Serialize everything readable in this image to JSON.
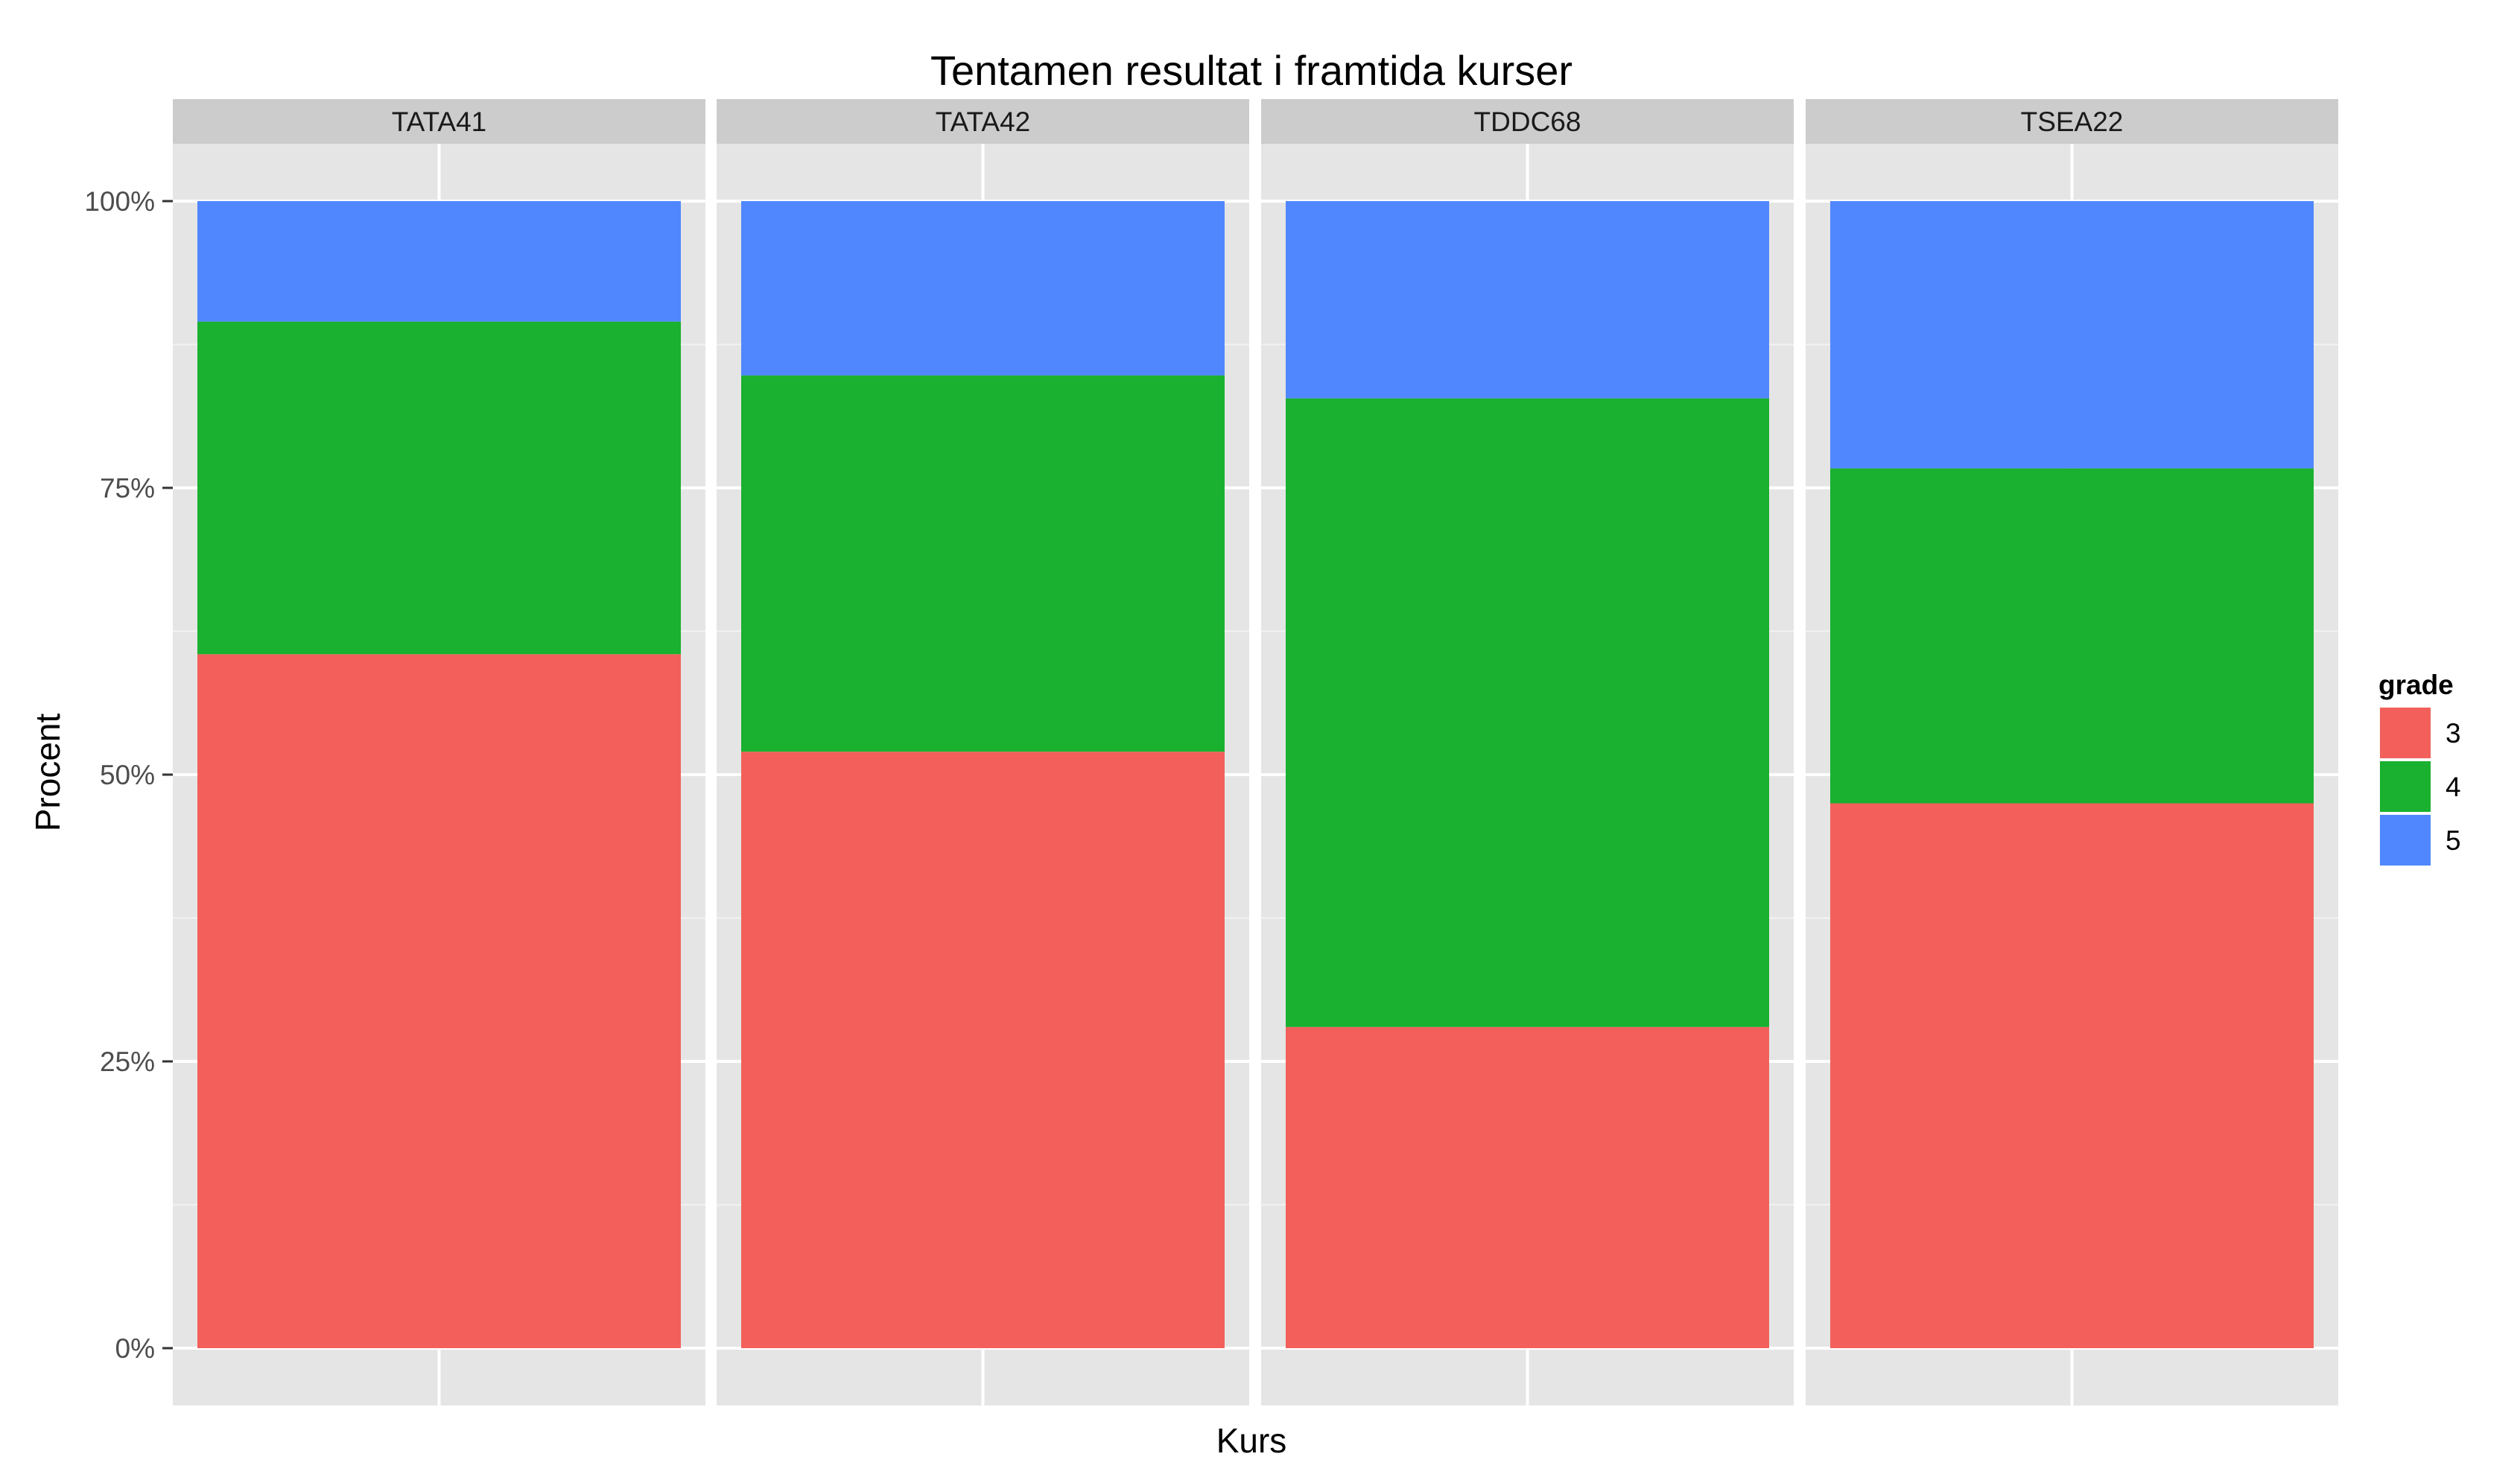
{
  "chart_data": {
    "type": "bar",
    "stacked": true,
    "faceted": true,
    "title": "Tentamen resultat i framtida kurser",
    "xlabel": "Kurs",
    "ylabel": "Procent",
    "ylim": [
      0,
      100
    ],
    "y_ticks": [
      {
        "value": 0,
        "label": "0%"
      },
      {
        "value": 25,
        "label": "25%"
      },
      {
        "value": 50,
        "label": "50%"
      },
      {
        "value": 75,
        "label": "75%"
      },
      {
        "value": 100,
        "label": "100%"
      }
    ],
    "categories": [
      "TATA41",
      "TATA42",
      "TDDC68",
      "TSEA22"
    ],
    "legend": {
      "title": "grade",
      "position": "right"
    },
    "series": [
      {
        "name": "3",
        "color": "#F3605B",
        "values": [
          60.5,
          52.0,
          28.0,
          47.5
        ]
      },
      {
        "name": "4",
        "color": "#19B12F",
        "values": [
          29.0,
          32.8,
          54.8,
          29.2
        ]
      },
      {
        "name": "5",
        "color": "#5087FE",
        "values": [
          10.5,
          15.2,
          17.2,
          23.3
        ]
      }
    ],
    "grid": true,
    "panel_background": "#e5e5e5",
    "strip_background": "#cccccc"
  }
}
